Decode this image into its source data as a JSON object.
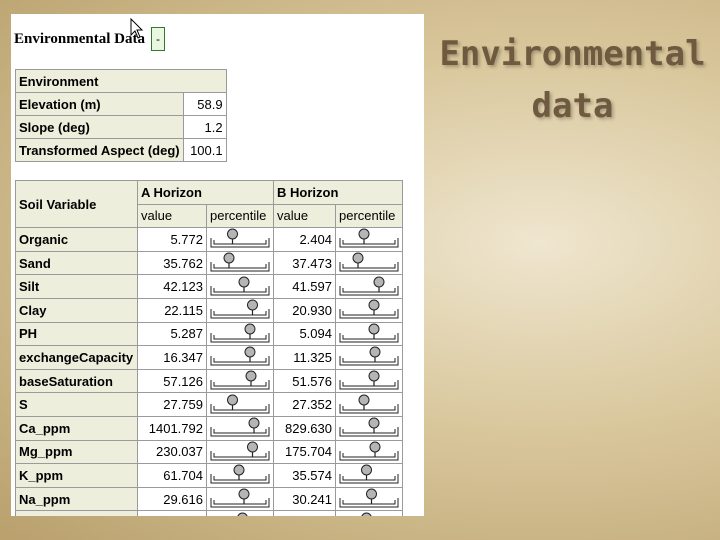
{
  "slide": {
    "title_line1": "Environmental",
    "title_line2": "data"
  },
  "panel": {
    "title": "Environmental Data",
    "collapse_label": "-",
    "environment": {
      "header": "Environment",
      "rows": [
        {
          "label": "Elevation (m)",
          "value": "58.9"
        },
        {
          "label": "Slope (deg)",
          "value": "1.2"
        },
        {
          "label": "Transformed Aspect (deg)",
          "value": "100.1"
        }
      ]
    },
    "soil": {
      "col_variable": "Soil Variable",
      "col_a": "A Horizon",
      "col_b": "B Horizon",
      "col_value": "value",
      "col_percentile": "percentile",
      "rows": [
        {
          "name": "Organic",
          "a_value": "5.772",
          "a_pct": 0.35,
          "b_value": "2.404",
          "b_pct": 0.4
        },
        {
          "name": "Sand",
          "a_value": "35.762",
          "a_pct": 0.28,
          "b_value": "37.473",
          "b_pct": 0.28
        },
        {
          "name": "Silt",
          "a_value": "42.123",
          "a_pct": 0.58,
          "b_value": "41.597",
          "b_pct": 0.7
        },
        {
          "name": "Clay",
          "a_value": "22.115",
          "a_pct": 0.75,
          "b_value": "20.930",
          "b_pct": 0.6
        },
        {
          "name": "PH",
          "a_value": "5.287",
          "a_pct": 0.7,
          "b_value": "5.094",
          "b_pct": 0.6
        },
        {
          "name": "exchangeCapacity",
          "a_value": "16.347",
          "a_pct": 0.7,
          "b_value": "11.325",
          "b_pct": 0.62
        },
        {
          "name": "baseSaturation",
          "a_value": "57.126",
          "a_pct": 0.72,
          "b_value": "51.576",
          "b_pct": 0.6
        },
        {
          "name": "S",
          "a_value": "27.759",
          "a_pct": 0.35,
          "b_value": "27.352",
          "b_pct": 0.4
        },
        {
          "name": "Ca_ppm",
          "a_value": "1401.792",
          "a_pct": 0.78,
          "b_value": "829.630",
          "b_pct": 0.6
        },
        {
          "name": "Mg_ppm",
          "a_value": "230.037",
          "a_pct": 0.75,
          "b_value": "175.704",
          "b_pct": 0.62
        },
        {
          "name": "K_ppm",
          "a_value": "61.704",
          "a_pct": 0.48,
          "b_value": "35.574",
          "b_pct": 0.45
        },
        {
          "name": "Na_ppm",
          "a_value": "29.616",
          "a_pct": 0.58,
          "b_value": "30.241",
          "b_pct": 0.55
        },
        {
          "name": "",
          "a_value": "",
          "a_pct": 0.55,
          "b_value": "",
          "b_pct": 0.45
        }
      ]
    }
  }
}
